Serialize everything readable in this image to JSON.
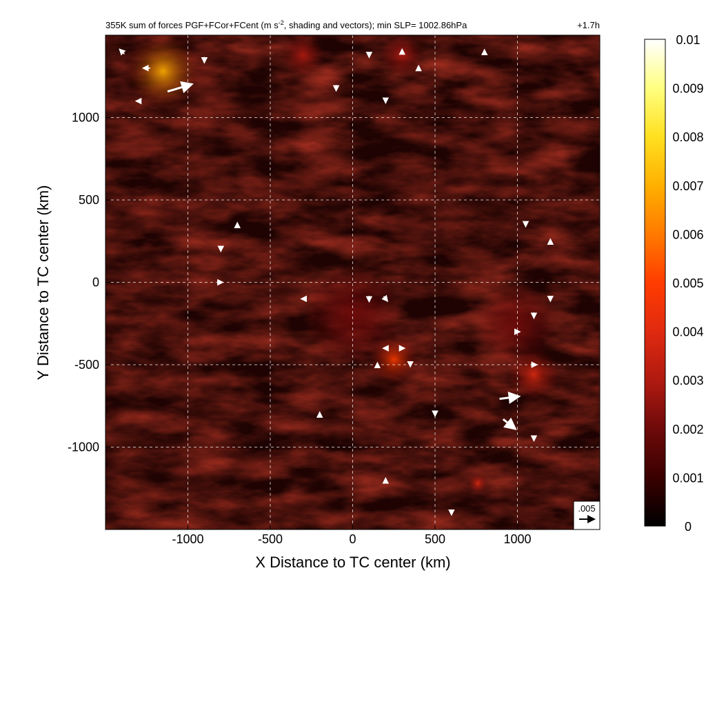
{
  "chart_data": {
    "type": "heatmap",
    "title": "355K sum of forces PGF+FCor+FCent (m s",
    "title_superscript": "-2",
    "title_suffix": ", shading and vectors); min SLP= 1002.86hPa",
    "time_label": "+1.7h",
    "xlabel": "X Distance to TC center (km)",
    "ylabel": "Y Distance to TC center (km)",
    "xlim": [
      -1500,
      1500
    ],
    "ylim": [
      -1500,
      1500
    ],
    "xticks": [
      -1000,
      -500,
      0,
      500,
      1000
    ],
    "yticks": [
      -1000,
      -500,
      0,
      500,
      1000
    ],
    "xtick_labels": [
      "-1000",
      "-500",
      "0",
      "500",
      "1000"
    ],
    "ytick_labels": [
      "-1000",
      "-500",
      "0",
      "500",
      "1000"
    ],
    "grid": true,
    "colorbar": {
      "range": [
        0,
        0.01
      ],
      "ticks": [
        0,
        0.001,
        0.002,
        0.003,
        0.004,
        0.005,
        0.006,
        0.007,
        0.008,
        0.009,
        0.01
      ],
      "tick_labels": [
        "0",
        "0.001",
        "0.002",
        "0.003",
        "0.004",
        "0.005",
        "0.006",
        "0.007",
        "0.008",
        "0.009",
        "0.01"
      ],
      "colors": [
        "#000000",
        "#3a0000",
        "#6e0a0a",
        "#b01a10",
        "#e02a10",
        "#ff3c00",
        "#ff7a00",
        "#ffb000",
        "#ffe020",
        "#ffff80",
        "#ffffff"
      ]
    },
    "reference_vector": {
      "label": ".005",
      "value": 0.005
    },
    "hotspots": [
      {
        "x": -1150,
        "y": 1280,
        "r": 230,
        "level": 0.007
      },
      {
        "x": 250,
        "y": -470,
        "r": 150,
        "level": 0.0055
      },
      {
        "x": 1100,
        "y": -560,
        "r": 160,
        "level": 0.0035
      },
      {
        "x": -300,
        "y": 1380,
        "r": 130,
        "level": 0.003
      },
      {
        "x": 300,
        "y": 1380,
        "r": 130,
        "level": 0.0028
      },
      {
        "x": 760,
        "y": -1220,
        "r": 60,
        "level": 0.004
      },
      {
        "x": 1000,
        "y": -250,
        "r": 250,
        "level": 0.0022
      },
      {
        "x": 0,
        "y": -200,
        "r": 300,
        "level": 0.0015
      }
    ],
    "vectors": [
      {
        "x": -1400,
        "y": 1400,
        "u": -0.001,
        "v": 0.001
      },
      {
        "x": -1250,
        "y": 1300,
        "u": -0.0015,
        "v": 0.0
      },
      {
        "x": -1050,
        "y": 1180,
        "u": 0.005,
        "v": 0.0015
      },
      {
        "x": -900,
        "y": 1350,
        "u": 0.0,
        "v": -0.0012
      },
      {
        "x": -1300,
        "y": 1100,
        "u": -0.001,
        "v": 0.0
      },
      {
        "x": 300,
        "y": 1400,
        "u": 0.0,
        "v": 0.001
      },
      {
        "x": 100,
        "y": 1380,
        "u": 0.0,
        "v": -0.001
      },
      {
        "x": -100,
        "y": 1180,
        "u": 0.0,
        "v": -0.0012
      },
      {
        "x": 400,
        "y": 1300,
        "u": 0.0,
        "v": 0.001
      },
      {
        "x": 200,
        "y": 1100,
        "u": 0.0,
        "v": -0.0008
      },
      {
        "x": 800,
        "y": 1400,
        "u": 0.0,
        "v": 0.0008
      },
      {
        "x": -700,
        "y": 350,
        "u": 0.0,
        "v": 0.0008
      },
      {
        "x": -800,
        "y": 200,
        "u": 0.0,
        "v": -0.0008
      },
      {
        "x": -800,
        "y": 0,
        "u": 0.0008,
        "v": 0.0
      },
      {
        "x": 100,
        "y": -100,
        "u": 0.0,
        "v": -0.0012
      },
      {
        "x": 200,
        "y": -100,
        "u": 0.0008,
        "v": -0.001
      },
      {
        "x": -300,
        "y": -100,
        "u": -0.0008,
        "v": 0.0
      },
      {
        "x": 200,
        "y": -400,
        "u": -0.001,
        "v": 0.0
      },
      {
        "x": 300,
        "y": -400,
        "u": 0.001,
        "v": 0.0
      },
      {
        "x": 350,
        "y": -500,
        "u": 0.0,
        "v": -0.0008
      },
      {
        "x": 150,
        "y": -500,
        "u": 0.0,
        "v": 0.0008
      },
      {
        "x": 1000,
        "y": -300,
        "u": 0.001,
        "v": 0.0
      },
      {
        "x": 1100,
        "y": -500,
        "u": 0.0012,
        "v": 0.0
      },
      {
        "x": 950,
        "y": -700,
        "u": 0.004,
        "v": 0.0005
      },
      {
        "x": 950,
        "y": -860,
        "u": 0.0025,
        "v": -0.002
      },
      {
        "x": 1100,
        "y": -950,
        "u": 0.0,
        "v": -0.0008
      },
      {
        "x": 1100,
        "y": -200,
        "u": 0.0,
        "v": -0.0012
      },
      {
        "x": 1200,
        "y": -100,
        "u": 0.0,
        "v": -0.001
      },
      {
        "x": 1050,
        "y": 350,
        "u": 0.0,
        "v": -0.0008
      },
      {
        "x": 1200,
        "y": 250,
        "u": 0.0,
        "v": 0.0008
      },
      {
        "x": 500,
        "y": -800,
        "u": 0.0,
        "v": -0.0008
      },
      {
        "x": -200,
        "y": -800,
        "u": 0.0,
        "v": 0.0008
      },
      {
        "x": 200,
        "y": -1200,
        "u": 0.0,
        "v": 0.0008
      },
      {
        "x": 600,
        "y": -1400,
        "u": 0.0,
        "v": -0.0008
      }
    ]
  }
}
